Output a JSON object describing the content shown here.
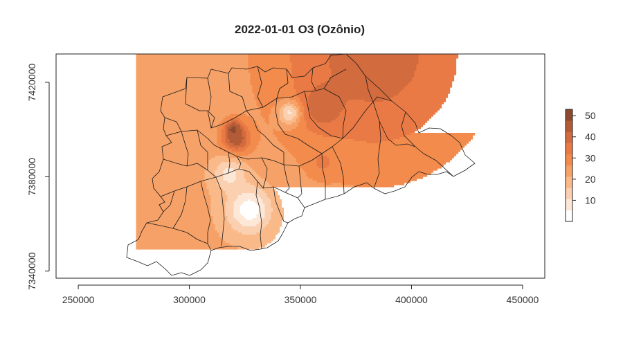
{
  "chart_data": {
    "type": "heatmap",
    "title": "2022-01-01 O3 (Ozônio)",
    "xlabel": "",
    "ylabel": "",
    "xlim": [
      240000,
      460000
    ],
    "ylim": [
      7337000,
      7432000
    ],
    "x_ticks": [
      250000,
      300000,
      350000,
      400000,
      450000
    ],
    "x_tick_labels": [
      "250000",
      "300000",
      "350000",
      "400000",
      "450000"
    ],
    "y_ticks": [
      7340000,
      7380000,
      7420000
    ],
    "y_tick_labels": [
      "7340000",
      "7380000",
      "7420000"
    ],
    "grid_extent": {
      "x": [
        276000,
        429000
      ],
      "y": [
        7337000,
        7432000
      ]
    },
    "background_value": 22,
    "field_points": [
      {
        "x": 320000,
        "y": 7400000,
        "value": 55,
        "sigma": 2500
      },
      {
        "x": 321000,
        "y": 7396000,
        "value": 48,
        "sigma": 4500
      },
      {
        "x": 360000,
        "y": 7410000,
        "value": 46,
        "sigma": 6000
      },
      {
        "x": 383000,
        "y": 7432000,
        "value": 40,
        "sigma": 34000
      },
      {
        "x": 327000,
        "y": 7366000,
        "value": 2,
        "sigma": 7000
      },
      {
        "x": 318000,
        "y": 7381000,
        "value": 8,
        "sigma": 5000
      },
      {
        "x": 345000,
        "y": 7407000,
        "value": 10,
        "sigma": 3500
      },
      {
        "x": 360000,
        "y": 7386000,
        "value": 33,
        "sigma": 4000
      }
    ],
    "legend": {
      "position": "right",
      "ticks": [
        10,
        20,
        30,
        40,
        50
      ],
      "tick_labels": [
        "10",
        "20",
        "30",
        "40",
        "50"
      ],
      "range": [
        0,
        53
      ],
      "colors": [
        "#ffffff",
        "#fde8d7",
        "#fbd0b1",
        "#f9b988",
        "#f6a167",
        "#f28b4c",
        "#e97a45",
        "#d26b3d",
        "#b35b36",
        "#8c4a2e"
      ]
    }
  }
}
